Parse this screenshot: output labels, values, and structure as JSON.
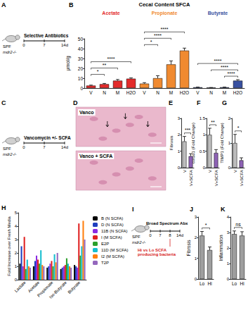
{
  "chart_data": [
    {
      "panel": "B",
      "type": "bar",
      "title": "Cecal Content SFCA",
      "y_label": "μmol/g",
      "categories": [
        "V",
        "N",
        "M",
        "H2O"
      ],
      "groups": [
        {
          "name": "Acetate",
          "color": "#e32b2b",
          "values": [
            2.5,
            4.0,
            7.5,
            9.5
          ],
          "errors": [
            0.5,
            0.7,
            1.2,
            0.8
          ],
          "annotations": [
            {
              "text": "*",
              "from": "V",
              "to": "N"
            },
            {
              "text": "**",
              "from": "V",
              "to": "M"
            },
            {
              "text": "****",
              "from": "V",
              "to": "H2O"
            }
          ]
        },
        {
          "name": "Propionate",
          "color": "#f08a30",
          "values": [
            4.5,
            10,
            24,
            38
          ],
          "errors": [
            1.0,
            2.5,
            3.5,
            2.5
          ],
          "annotations": [
            {
              "text": "*",
              "from": "V",
              "to": "N"
            },
            {
              "text": "****",
              "from": "V",
              "to": "M"
            },
            {
              "text": "****",
              "from": "V",
              "to": "H2O"
            }
          ]
        },
        {
          "name": "Butyrate",
          "color": "#3850a0",
          "values": [
            0.8,
            0.5,
            0.8,
            7.5
          ],
          "errors": [
            0.2,
            0.1,
            0.2,
            1.0
          ],
          "annotations": [
            {
              "text": "****",
              "from": "M",
              "to": "H2O"
            },
            {
              "text": "****",
              "from": "N",
              "to": "H2O"
            },
            {
              "text": "****",
              "from": "V",
              "to": "H2O"
            }
          ]
        }
      ],
      "ylim": [
        0,
        50
      ],
      "yticks": [
        0,
        10,
        20,
        30,
        40,
        50
      ],
      "grid": false
    },
    {
      "panel": "E",
      "type": "bar",
      "y_label": "Fibrosis",
      "categories": [
        "V",
        "V+SCFA"
      ],
      "values": [
        1.6,
        0.7
      ],
      "errors": [
        0.3,
        0.15
      ],
      "colors": [
        "#bdbdbd",
        "#8e63b5"
      ],
      "ylim": [
        0,
        3
      ],
      "yticks": [
        0,
        1,
        2,
        3
      ],
      "annotations": [
        {
          "text": "***",
          "from": "V",
          "to": "V+SCFA"
        }
      ],
      "grid": false
    },
    {
      "panel": "F",
      "type": "bar",
      "y_label": "col1α1 (Fold Change)",
      "categories": [
        "V",
        "V+SCFA"
      ],
      "values": [
        1.0,
        0.45
      ],
      "errors": [
        0.2,
        0.1
      ],
      "colors": [
        "#bdbdbd",
        "#8e63b5"
      ],
      "ylim": [
        0,
        1.5
      ],
      "yticks": [
        0,
        0.5,
        1,
        1.5
      ],
      "annotations": [
        {
          "text": "**",
          "from": "V",
          "to": "V+SCFA"
        }
      ],
      "grid": false
    },
    {
      "panel": "G",
      "type": "bar",
      "y_label": "TIMP1 (Fold Change)",
      "categories": [
        "V",
        "V+SCFA"
      ],
      "values": [
        1.0,
        0.3
      ],
      "errors": [
        0.35,
        0.1
      ],
      "colors": [
        "#bdbdbd",
        "#8e63b5"
      ],
      "ylim": [
        0,
        2
      ],
      "yticks": [
        0,
        1,
        2
      ],
      "annotations": [
        {
          "text": "*",
          "from": "V",
          "to": "V+SCFA"
        }
      ],
      "grid": false
    },
    {
      "panel": "H",
      "type": "bar",
      "y_label": "Fold Increase over Fresh Media",
      "categories": [
        "Lactate",
        "Acetate",
        "Propionate",
        "Iso-Butyrate",
        "Butyrate"
      ],
      "series": [
        {
          "name": "B (N SCFA)",
          "color": "#000000",
          "values": [
            1.2,
            1.0,
            0.9,
            0.8,
            1.1
          ]
        },
        {
          "name": "D (N SCFA)",
          "color": "#1f3fbf",
          "values": [
            2.5,
            1.4,
            1.0,
            0.9,
            1.0
          ]
        },
        {
          "name": "11B (N SCFA)",
          "color": "#8a2be2",
          "values": [
            1.0,
            1.8,
            1.2,
            1.0,
            0.9
          ]
        },
        {
          "name": "I (M SCFA)",
          "color": "#e02020",
          "values": [
            3.2,
            1.5,
            1.4,
            1.1,
            4.2
          ]
        },
        {
          "name": "E2P",
          "color": "#2ca02c",
          "values": [
            0.8,
            1.2,
            1.0,
            1.6,
            1.8
          ]
        },
        {
          "name": "11D (M SCFA)",
          "color": "#17becf",
          "values": [
            1.5,
            2.2,
            1.9,
            1.2,
            2.5
          ]
        },
        {
          "name": "I2 (M SCFA)",
          "color": "#ff7f0e",
          "values": [
            1.0,
            1.1,
            1.3,
            1.0,
            4.4
          ]
        },
        {
          "name": "T2P",
          "color": "#9467bd",
          "values": [
            0.9,
            1.0,
            2.0,
            0.9,
            3.0
          ]
        }
      ],
      "ylim": [
        0,
        5
      ],
      "yticks": [
        0,
        1,
        2,
        3,
        4,
        5
      ],
      "legend": "right",
      "grid": false
    },
    {
      "panel": "J",
      "type": "bar",
      "y_label": "Fibrosis",
      "categories": [
        "Lo",
        "Hi"
      ],
      "values": [
        2.1,
        1.4
      ],
      "errors": [
        0.2,
        0.15
      ],
      "colors": [
        "#9e9e9e",
        "#9e9e9e"
      ],
      "ylim": [
        0,
        3
      ],
      "yticks": [
        0,
        1,
        2,
        3
      ],
      "annotations": [
        {
          "text": "*",
          "from": "Lo",
          "to": "Hi"
        }
      ],
      "grid": false
    },
    {
      "panel": "K",
      "type": "bar",
      "y_label": "Inflammation",
      "categories": [
        "Lo",
        "Hi"
      ],
      "values": [
        2.9,
        2.8
      ],
      "errors": [
        0.2,
        0.25
      ],
      "colors": [
        "#9e9e9e",
        "#9e9e9e"
      ],
      "ylim": [
        0,
        4
      ],
      "yticks": [
        0,
        1,
        2,
        3,
        4
      ],
      "annotations": [
        {
          "text": "ns",
          "from": "Lo",
          "to": "Hi"
        }
      ],
      "grid": false
    }
  ],
  "schematics": [
    {
      "panel": "A",
      "strain": "SPF",
      "genotype": "mdr2-/-",
      "treatment": "Selective Antibiotics",
      "timepoints": [
        "0",
        "7",
        "14d"
      ]
    },
    {
      "panel": "C",
      "strain": "SPF",
      "genotype": "mdr2-/-",
      "treatment": "Vancomycin +/- SCFA",
      "timepoints": [
        "0",
        "7",
        "14d"
      ]
    },
    {
      "panel": "I",
      "strain": "SPF",
      "genotype": "mdr2-/-",
      "treatment": "Broad Spectrum Abx",
      "intervention": "Hi vs Lo SCFA producing bacteria",
      "timepoints": [
        "0",
        "7",
        "8",
        "14d"
      ]
    }
  ],
  "histology": {
    "panel": "D",
    "images": [
      "Vanco",
      "Vanco + SCFA"
    ]
  }
}
